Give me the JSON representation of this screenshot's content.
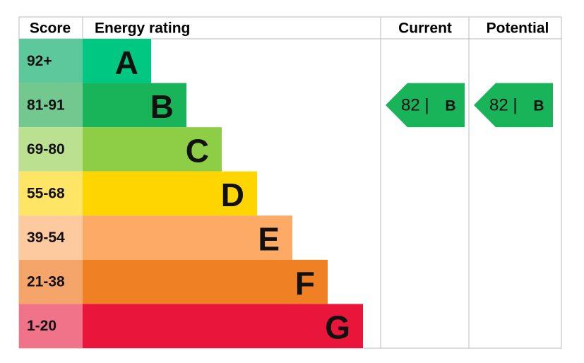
{
  "header": {
    "score": "Score",
    "rating": "Energy rating",
    "current": "Current",
    "potential": "Potential"
  },
  "bands": [
    {
      "score": "92+",
      "letter": "A",
      "color": "#00c781",
      "score_color": "#5cc89c"
    },
    {
      "score": "81-91",
      "letter": "B",
      "color": "#19b459",
      "score_color": "#72c88f"
    },
    {
      "score": "69-80",
      "letter": "C",
      "color": "#8dce46",
      "score_color": "#bbe090"
    },
    {
      "score": "55-68",
      "letter": "D",
      "color": "#ffd500",
      "score_color": "#ffe566"
    },
    {
      "score": "39-54",
      "letter": "E",
      "color": "#fcaa65",
      "score_color": "#fdc99e"
    },
    {
      "score": "21-38",
      "letter": "F",
      "color": "#ef8023",
      "score_color": "#f5a56a"
    },
    {
      "score": "1-20",
      "letter": "G",
      "color": "#e9153b",
      "score_color": "#f07389"
    }
  ],
  "current": {
    "label": "82 |",
    "letter": "B"
  },
  "potential": {
    "label": "82 |",
    "letter": "B"
  }
}
